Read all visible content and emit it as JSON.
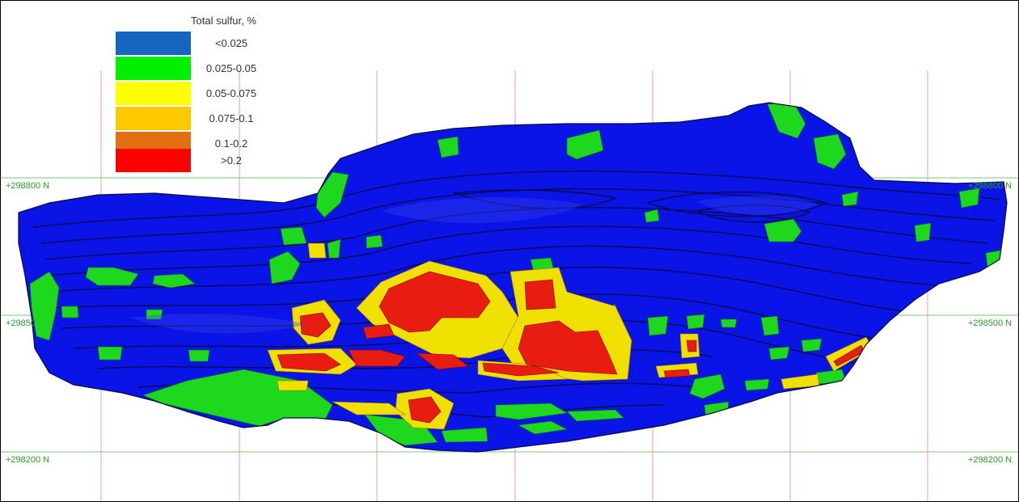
{
  "legend": {
    "title": "Total sulfur, %",
    "items": [
      {
        "label": "<0.025",
        "color": "#1665c0"
      },
      {
        "label": "0.025-0.05",
        "color": "#00f000"
      },
      {
        "label": "0.05-0.075",
        "color": "#ffff00"
      },
      {
        "label": "0.075-0.1",
        "color": "#ffc800"
      },
      {
        "label": "0.1-0.2",
        "color": "#e07010"
      },
      {
        "label": ">0.2",
        "color": "#ff0000"
      }
    ]
  },
  "grid": {
    "northings": {
      "n298800": "+298800 N",
      "n298500": "+298500 N",
      "n298200": "+298200 N"
    },
    "east_label_298800": "+298800 N",
    "west_label_298500": "+29850",
    "grid_color": "#78c878",
    "easting_line_color": "#e8a0a0"
  },
  "colors": {
    "pit_body": "#0a14e6",
    "low_green": "#1ed81e",
    "high_red": "#e81c10",
    "mid_yellow": "#f0e000",
    "contour": "#0a0a40"
  }
}
